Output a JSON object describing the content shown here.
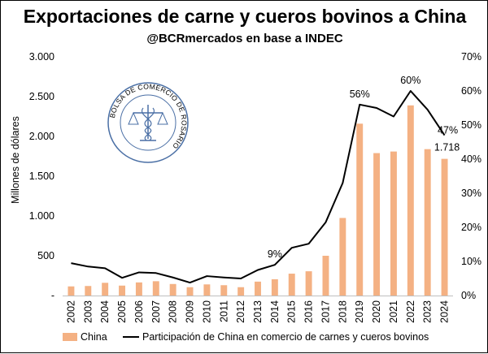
{
  "title": "Exportaciones de carne y cueros bovinos a China",
  "subtitle": "@BCRmercados en base a INDEC",
  "logo": {
    "ring_text": "BOLSA DE COMERCIO DE ROSARIO",
    "color": "#4a6fa5"
  },
  "chart_data": {
    "type": "bar",
    "categories": [
      "2002",
      "2003",
      "2004",
      "2005",
      "2006",
      "2007",
      "2008",
      "2009",
      "2010",
      "2011",
      "2012",
      "2013",
      "2014",
      "2015",
      "2016",
      "2017",
      "2018",
      "2019",
      "2020",
      "2021",
      "2022",
      "2023",
      "2024"
    ],
    "series": [
      {
        "name": "China",
        "type": "bar",
        "axis": "left",
        "color": "#f4b183",
        "values": [
          115,
          120,
          160,
          125,
          165,
          180,
          145,
          105,
          140,
          130,
          105,
          175,
          205,
          275,
          305,
          500,
          975,
          2160,
          1790,
          1810,
          2390,
          1840,
          1718
        ]
      },
      {
        "name": "Participación de China en comercio de carnes y cueros bovinos",
        "type": "line",
        "axis": "right",
        "color": "#000000",
        "values": [
          9.5,
          8.5,
          8.0,
          5.2,
          6.8,
          6.6,
          5.3,
          3.8,
          5.7,
          5.3,
          5.0,
          7.5,
          9.0,
          14.0,
          15.2,
          21.5,
          33.0,
          56.0,
          55.0,
          52.5,
          60.0,
          54.5,
          47.0
        ]
      }
    ],
    "ylabel": "Millones de dólares",
    "ylim": [
      0,
      3000
    ],
    "y_ticks": [
      "-",
      "500",
      "1.000",
      "1.500",
      "2.000",
      "2.500",
      "3.000"
    ],
    "y2lim": [
      0,
      70
    ],
    "y2_ticks": [
      "0%",
      "10%",
      "20%",
      "30%",
      "40%",
      "50%",
      "60%",
      "70%"
    ],
    "grid": false,
    "legend_position": "bottom",
    "annotations": [
      {
        "category": "2014",
        "text": "9%",
        "series": 1
      },
      {
        "category": "2019",
        "text": "56%",
        "series": 1
      },
      {
        "category": "2022",
        "text": "60%",
        "series": 1
      },
      {
        "category": "2024",
        "text": "47%",
        "series": 1
      },
      {
        "category": "2024",
        "text": "1.718",
        "series": 0
      }
    ]
  }
}
